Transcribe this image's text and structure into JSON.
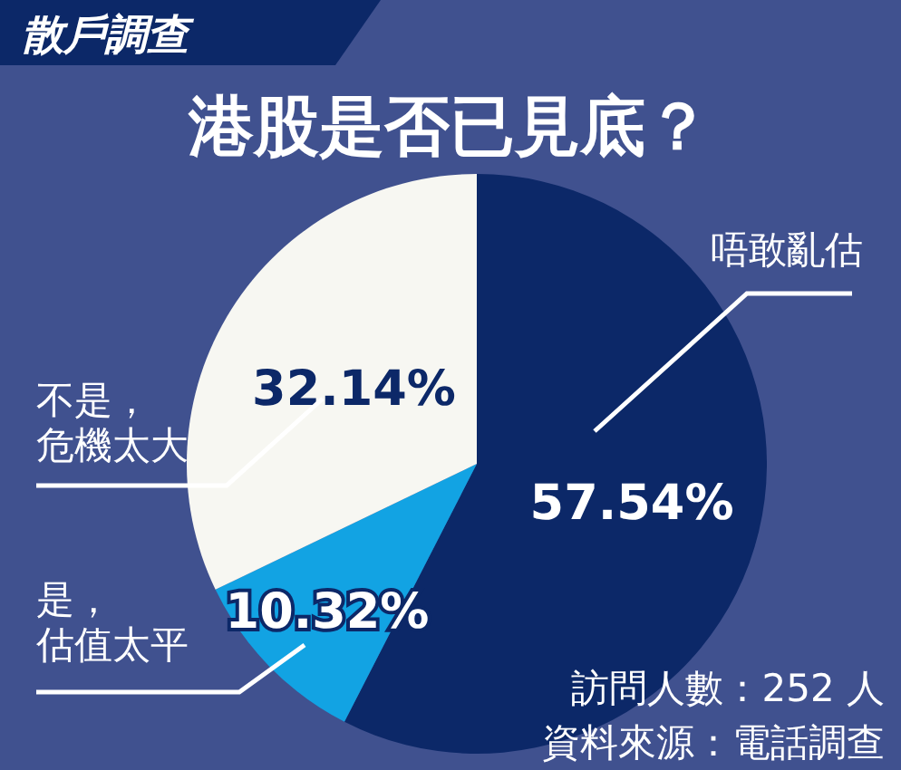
{
  "chart_data": {
    "type": "pie",
    "title": "港股是否已見底？",
    "subtitle": "散戶調查",
    "categories": [
      "唔敢亂估",
      "是，估值太平",
      "不是，危機太大"
    ],
    "values": [
      57.54,
      10.32,
      32.14
    ],
    "value_labels": [
      "57.54%",
      "10.32%",
      "32.14%"
    ],
    "colors": [
      "#0c2868",
      "#12a3e3",
      "#f7f7f2"
    ],
    "annotations": [
      "訪問人數：252 人",
      "資料來源：電話調查"
    ]
  }
}
